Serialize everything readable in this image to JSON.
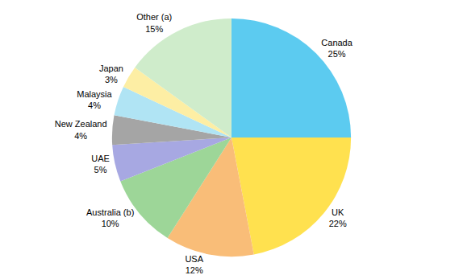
{
  "chart_data": {
    "type": "pie",
    "categories": [
      "Canada",
      "UK",
      "USA",
      "Australia (b)",
      "UAE",
      "New Zealand",
      "Malaysia",
      "Japan",
      "Other (a)"
    ],
    "values": [
      25,
      22,
      12,
      10,
      5,
      4,
      4,
      3,
      15
    ],
    "value_labels": [
      "25%",
      "22%",
      "12%",
      "10%",
      "5%",
      "4%",
      "4%",
      "3%",
      "15%"
    ],
    "colors": [
      "#5ccbf0",
      "#ffe14f",
      "#f9bd78",
      "#9dd698",
      "#a7a8e2",
      "#a5a5a5",
      "#b0e4f4",
      "#fdeea4",
      "#cfeccb"
    ],
    "data_labels": true
  }
}
